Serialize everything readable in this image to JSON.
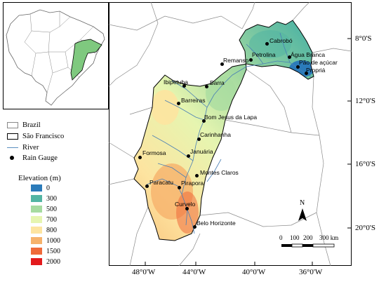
{
  "legend": {
    "items": [
      {
        "label": "Brazil"
      },
      {
        "label": "São Francisco"
      },
      {
        "label": "River"
      },
      {
        "label": "Rain Gauge"
      }
    ],
    "elevation_title": "Elevation (m)",
    "elevation_classes": [
      {
        "label": "0",
        "color": "#2b7bba"
      },
      {
        "label": "300",
        "color": "#52b5a3"
      },
      {
        "label": "500",
        "color": "#a6dba0"
      },
      {
        "label": "700",
        "color": "#e6f5b0"
      },
      {
        "label": "800",
        "color": "#fde4a0"
      },
      {
        "label": "1000",
        "color": "#f6b26b"
      },
      {
        "label": "1500",
        "color": "#ef6a3a"
      },
      {
        "label": "2000",
        "color": "#e31a1c"
      }
    ]
  },
  "lat_labels": [
    "8°0'S",
    "12°0'S",
    "16°0'S",
    "20°0'S"
  ],
  "lon_labels": [
    "48°0'W",
    "44°0'W",
    "40°0'W",
    "36°0'W"
  ],
  "scale": {
    "ticks": [
      "0",
      "100",
      "200",
      "300 km"
    ]
  },
  "north": "N",
  "gauges": [
    {
      "name": "Cabrobó"
    },
    {
      "name": "Petrolina"
    },
    {
      "name": "Remanso"
    },
    {
      "name": "Água Branca"
    },
    {
      "name": "Pão de açúcar"
    },
    {
      "name": "Propriá"
    },
    {
      "name": "Ibipetuba"
    },
    {
      "name": "Barra"
    },
    {
      "name": "Barreiras"
    },
    {
      "name": "Bom Jesus da Lapa"
    },
    {
      "name": "Carinhanha"
    },
    {
      "name": "Formosa"
    },
    {
      "name": "Januária"
    },
    {
      "name": "Montes Claros"
    },
    {
      "name": "Paracatu"
    },
    {
      "name": "Pirapora"
    },
    {
      "name": "Curvelo"
    },
    {
      "name": "Belo Horizonte"
    }
  ]
}
